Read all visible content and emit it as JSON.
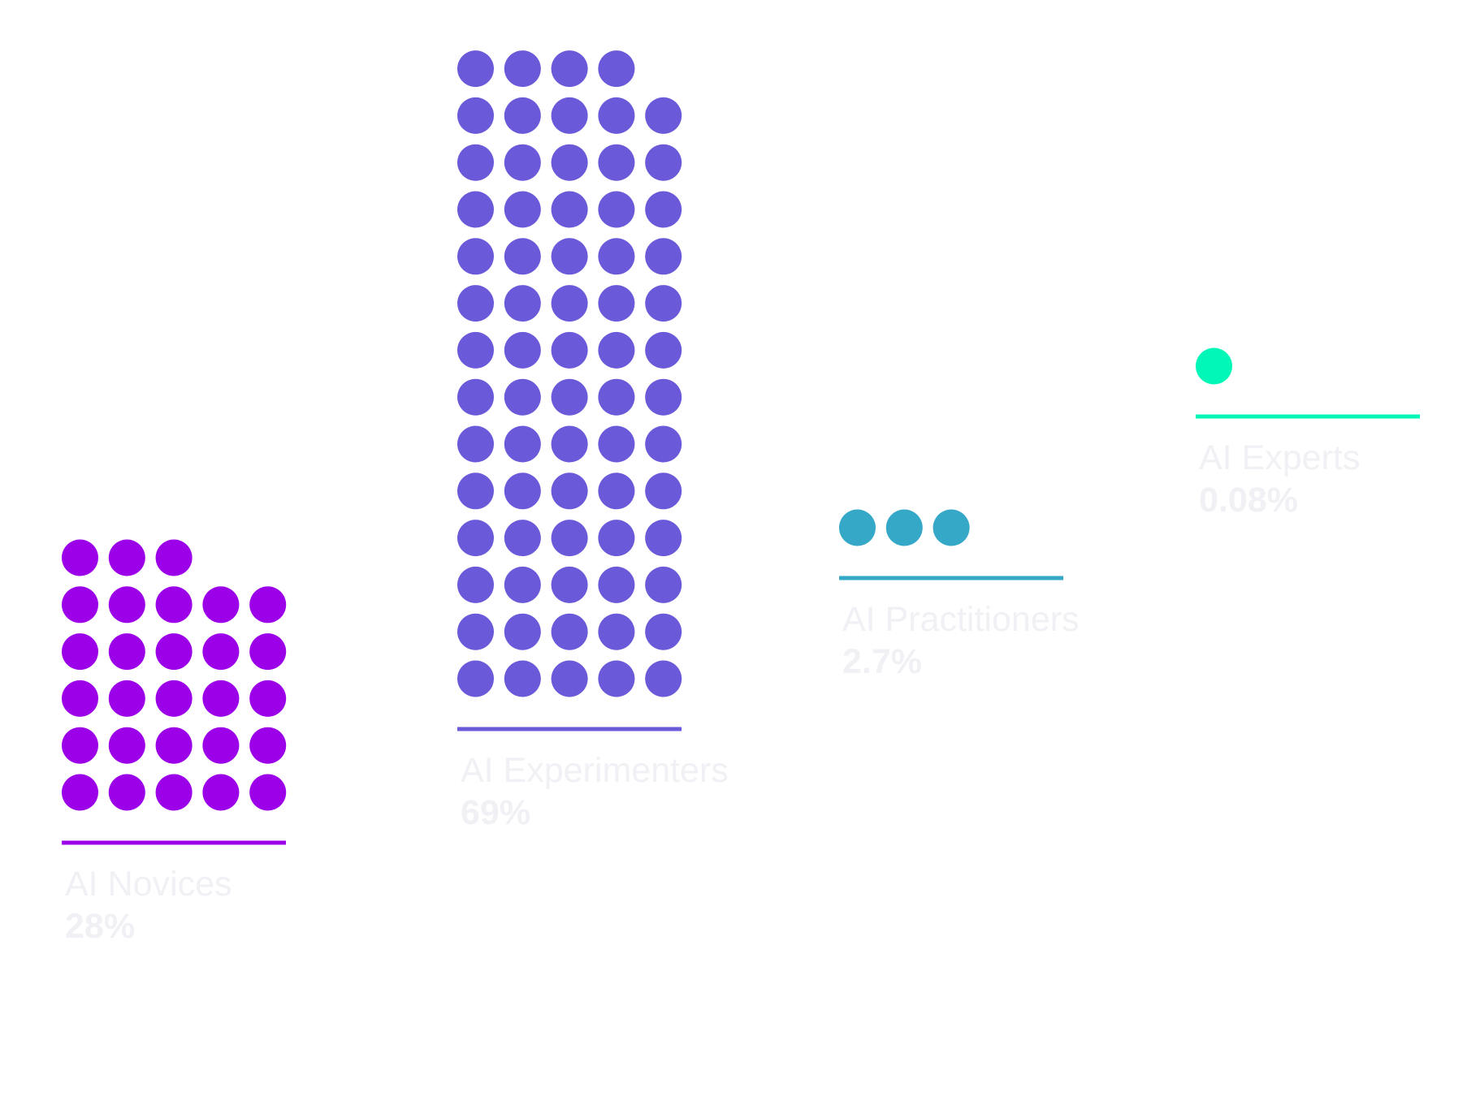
{
  "chart_data": {
    "type": "pictograph",
    "unit_per_dot": 1,
    "dots_per_row": 5,
    "groups": [
      {
        "label": "AI Novices",
        "value_label": "28%",
        "value": 28,
        "dots": 28,
        "color": "#9b00e8"
      },
      {
        "label": "AI Experimenters",
        "value_label": "69%",
        "value": 69,
        "dots": 69,
        "color": "#6a5ad9"
      },
      {
        "label": "AI Practitioners",
        "value_label": "2.7%",
        "value": 2.7,
        "dots": 3,
        "color": "#35a8c8"
      },
      {
        "label": "AI Experts",
        "value_label": "0.08%",
        "value": 0.08,
        "dots": 1,
        "color": "#00f7b8"
      }
    ]
  }
}
